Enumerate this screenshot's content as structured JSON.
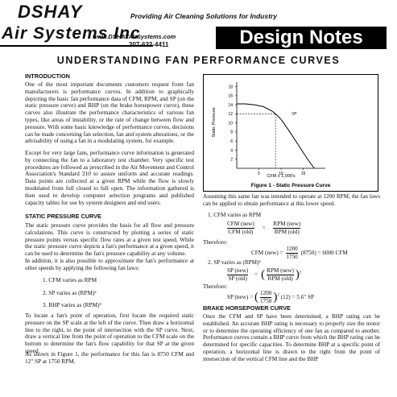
{
  "header": {
    "logo_line1": "DSHAY",
    "logo_line2": "Air Systems Inc",
    "tagline": "Providing Air Cleaning Solutions for Industry",
    "website": "www.DSHAYAirSystems.com",
    "phone": "207-632-4411",
    "badge": "Design Notes"
  },
  "title": "UNDERSTANDING FAN PERFORMANCE CURVES",
  "left_column": {
    "intro_heading": "INTRODUCTION",
    "intro_paragraphs": [
      "One of the most important documents customers request from fan manufacturers is performance curves. In addition to graphically depicting the basic fan performance data of CFM, RPM, and SP (on the static pressure curve) and BHP (on the brake horsepower curve), these curves also illustrate the performance characteristics of various fan types, like areas of instability, or the rate of change between flow and pressure. With some basic knowledge of performance curves, decisions can be made concerning fan selection, fan and system alterations, or the advisability of using a fan in a modulating system, for example.",
      "Except for very large fans, performance curve information is generated by connecting the fan to a laboratory test chamber. Very specific test procedures are followed as prescribed in the Air Movement and Control Association's Standard 210 to assure uniform and accurate readings. Data points are collected at a given RPM while the flow is slowly modulated from full closed to full open. The information gathered is then used to develop computer selection programs and published capacity tables for use by system designers and end users."
    ],
    "static_heading": "STATIC PRESSURE CURVE",
    "static_paragraphs": [
      "The static pressure curve provides the basis for all flow and pressure calculations. This curve is constructed by plotting a series of static pressure points versus specific flow rates at a given test speed. While the static pressure curve depicts a fan's performance at a given speed, it can be used to determine the fan's pressure capability at any volume.",
      "In addition, it is also possible to approximate the fan's performance at other speeds by applying the following fan laws:"
    ],
    "fan_laws": [
      "1. CFM varies as RPM",
      "2. SP varies as (RPM)²",
      "3. BHP varies as (RPM)³"
    ],
    "closing_paragraphs": [
      "To locate a fan's point of operation, first locate the required static pressure on the SP scale at the left of the curve. Then draw a horizontal line to the right, to the point of intersection with the SP curve. Next, draw a vertical line from the point of operation to the CFM scale on the bottom to determine the fan's flow capability for that SP at the given speed.",
      "As shown in Figure 1, the performance for this fan is 8750 CFM and 12\" SP at 1750 RPM."
    ]
  },
  "figure": {
    "type": "line",
    "y_label": "Static Pressure",
    "x_label": "CFM x 1,000's",
    "caption": "Figure 1 - Static Pressure Curve",
    "curve_label": "SP",
    "xlim": [
      0,
      20
    ],
    "ylim": [
      0,
      19
    ],
    "xticks": [
      5,
      10,
      15
    ],
    "yticks": [
      2,
      4,
      6,
      8,
      10,
      12,
      14,
      16,
      18
    ],
    "x": [
      0,
      2,
      4,
      6,
      8,
      8.75,
      10,
      12,
      14,
      16,
      17.5
    ],
    "y": [
      14.2,
      14.2,
      14,
      13.6,
      12.6,
      12,
      10.8,
      8,
      5,
      2,
      0
    ],
    "operating_point": {
      "x": 8.75,
      "y": 12
    }
  },
  "right_column": {
    "assuming": "Assuming this same fan was intended to operate at 1200 RPM, the fan laws can be applied to obtain performance at this lower speed.",
    "law1": "1. CFM varies as RPM",
    "eq1": {
      "left_num": "CFM (new)",
      "left_den": "CFM (old)",
      "sign": "=",
      "right_num": "RPM (new)",
      "right_den": "RPM (old)"
    },
    "therefore1": "Therefore:",
    "eq2": {
      "left": "CFM (new) =",
      "num": "1200",
      "den": "1750",
      "rest": "(8750) = 6000 CFM"
    },
    "law2": "2. SP varies as (RPM)²",
    "eq3": {
      "left_num": "SP (new)",
      "left_den": "SP (old)",
      "sign": "=",
      "open": "(",
      "right_num": "RPM (new)",
      "right_den": "RPM (old)",
      "close": ")",
      "exp": "2"
    },
    "therefore2": "Therefore:",
    "eq4": {
      "left": "SP (new) =",
      "open": "(",
      "num": "1200",
      "den": "1750",
      "close": ")",
      "exp": "2",
      "rest": "(12) = 5.6\" SP"
    },
    "bhp_heading": "BRAKE HORSEPOWER CURVE",
    "bhp_paragraph": "Once the CFM and SP have been determined, a BHP rating can be established. An accurate BHP rating is necessary to properly size the motor or to determine the operating efficiency of one fan as compared to another. Performance curves contain a BHP curve from which the BHP rating can be determined for specific capacities. To determine BHP at a specific point of operation, a horizontal line is drawn to the right from the point of intersection of the vertical CFM line and the BHP"
  }
}
